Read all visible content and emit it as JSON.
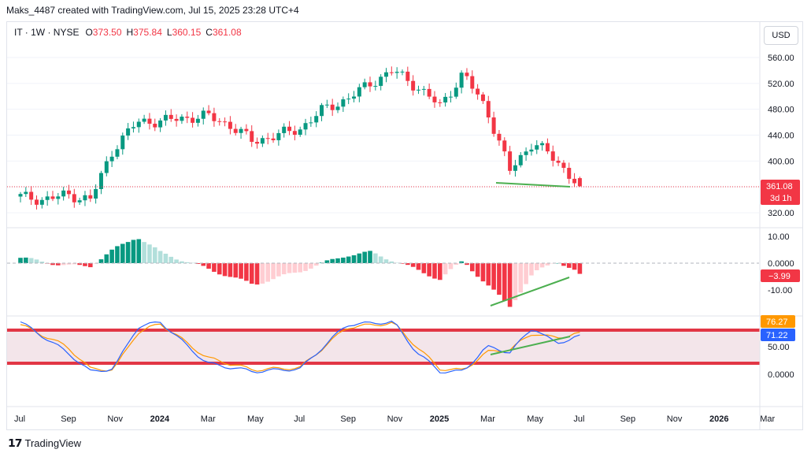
{
  "header": {
    "attribution": "Maks_4487 created with TradingView.com, Jul 15, 2025 23:28 UTC+4"
  },
  "legend": {
    "symbol": "IT · 1W · NYSE",
    "o_label": "O",
    "o_value": "373.50",
    "h_label": "H",
    "h_value": "375.84",
    "l_label": "L",
    "l_value": "360.15",
    "c_label": "C",
    "c_value": "361.08"
  },
  "currency_button": "USD",
  "colors": {
    "up": "#089981",
    "down": "#f23645",
    "hist_up_light": "#b2dfdb",
    "hist_down_light": "#ffcdd2",
    "k_line": "#2962ff",
    "d_line": "#ff9800",
    "band": "#e23645",
    "trend": "#4caf50"
  },
  "price_axis": {
    "ticks": [
      "560.00",
      "520.00",
      "480.00",
      "440.00",
      "400.00",
      "360.00",
      "320.00"
    ],
    "last_price": "361.08",
    "countdown": "3d 1h"
  },
  "macd_axis": {
    "ticks": [
      "10.00",
      "0.0000",
      "-10.00"
    ],
    "last_value": "−3.99"
  },
  "stoch_axis": {
    "ticks": [
      "50.00",
      "0.0000"
    ],
    "d_value": "76.27",
    "k_value": "71.22"
  },
  "time_axis": {
    "labels": [
      "Jul",
      "Sep",
      "Nov",
      "2024",
      "Mar",
      "May",
      "Jul",
      "Sep",
      "Nov",
      "2025",
      "Mar",
      "May",
      "Jul",
      "Sep",
      "Nov",
      "2026",
      "Mar"
    ]
  },
  "branding": "TradingView",
  "chart_data": [
    {
      "type": "candlestick",
      "title": "IT · 1W · NYSE",
      "ylim": [
        300,
        580
      ],
      "x_range": [
        "2023-07",
        "2026-03"
      ],
      "anchor_closes": [
        [
          "2023-07",
          345
        ],
        [
          "2023-08",
          340
        ],
        [
          "2023-09",
          348
        ],
        [
          "2023-10",
          340
        ],
        [
          "2023-11",
          420
        ],
        [
          "2023-12",
          460
        ],
        [
          "2024-01",
          462
        ],
        [
          "2024-03",
          470
        ],
        [
          "2024-04",
          455
        ],
        [
          "2024-05",
          430
        ],
        [
          "2024-06",
          440
        ],
        [
          "2024-07",
          450
        ],
        [
          "2024-08",
          480
        ],
        [
          "2024-09",
          495
        ],
        [
          "2024-10",
          520
        ],
        [
          "2024-11",
          540
        ],
        [
          "2024-12",
          515
        ],
        [
          "2025-01",
          485
        ],
        [
          "2025-02",
          535
        ],
        [
          "2025-03",
          480
        ],
        [
          "2025-04",
          385
        ],
        [
          "2025-05",
          430
        ],
        [
          "2025-06",
          400
        ],
        [
          "2025-07",
          361
        ]
      ],
      "last": {
        "open": 373.5,
        "high": 375.84,
        "low": 360.15,
        "close": 361.08
      }
    },
    {
      "type": "bar",
      "title": "MACD histogram",
      "ylim": [
        -16,
        12
      ],
      "anchor_values": [
        [
          "2023-07",
          2
        ],
        [
          "2023-09",
          -1
        ],
        [
          "2023-10",
          -1
        ],
        [
          "2023-11",
          5
        ],
        [
          "2023-12",
          10
        ],
        [
          "2024-01",
          4
        ],
        [
          "2024-03",
          -2
        ],
        [
          "2024-05",
          -8
        ],
        [
          "2024-07",
          -3
        ],
        [
          "2024-09",
          3
        ],
        [
          "2024-10",
          4
        ],
        [
          "2024-11",
          1
        ],
        [
          "2025-01",
          -6
        ],
        [
          "2025-02",
          1
        ],
        [
          "2025-03",
          -8
        ],
        [
          "2025-04",
          -16
        ],
        [
          "2025-05",
          -4
        ],
        [
          "2025-06",
          1
        ],
        [
          "2025-07",
          -3.99
        ]
      ]
    },
    {
      "type": "line",
      "title": "Stochastic",
      "ylim": [
        -10,
        100
      ],
      "series": [
        {
          "name": "%K",
          "anchor_values": [
            [
              "2023-07",
              95
            ],
            [
              "2023-09",
              40
            ],
            [
              "2023-10",
              5
            ],
            [
              "2023-11",
              10
            ],
            [
              "2023-12",
              85
            ],
            [
              "2024-01",
              95
            ],
            [
              "2024-03",
              20
            ],
            [
              "2024-05",
              5
            ],
            [
              "2024-07",
              10
            ],
            [
              "2024-09",
              90
            ],
            [
              "2024-11",
              95
            ],
            [
              "2024-12",
              40
            ],
            [
              "2025-01",
              5
            ],
            [
              "2025-02",
              5
            ],
            [
              "2025-03",
              50
            ],
            [
              "2025-04",
              40
            ],
            [
              "2025-05",
              85
            ],
            [
              "2025-06",
              55
            ],
            [
              "2025-07",
              71.22
            ]
          ]
        },
        {
          "name": "%D",
          "anchor_values": [
            [
              "2023-07",
              90
            ],
            [
              "2023-09",
              50
            ],
            [
              "2023-10",
              10
            ],
            [
              "2023-11",
              8
            ],
            [
              "2023-12",
              75
            ],
            [
              "2024-01",
              92
            ],
            [
              "2024-03",
              30
            ],
            [
              "2024-05",
              8
            ],
            [
              "2024-07",
              12
            ],
            [
              "2024-09",
              85
            ],
            [
              "2024-11",
              93
            ],
            [
              "2024-12",
              50
            ],
            [
              "2025-01",
              10
            ],
            [
              "2025-02",
              7
            ],
            [
              "2025-03",
              40
            ],
            [
              "2025-04",
              45
            ],
            [
              "2025-05",
              75
            ],
            [
              "2025-06",
              65
            ],
            [
              "2025-07",
              76.27
            ]
          ]
        }
      ],
      "bands": [
        80,
        20
      ]
    }
  ]
}
